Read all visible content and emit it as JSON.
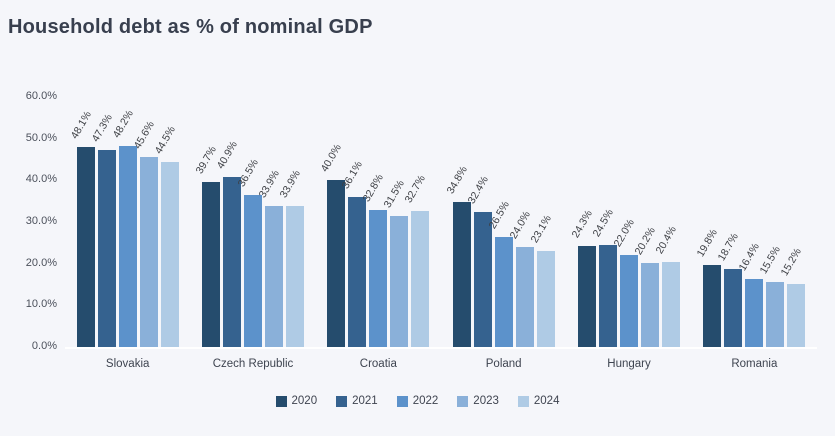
{
  "chart_data": {
    "type": "bar",
    "title": "Household debt as % of nominal GDP",
    "categories": [
      "Slovakia",
      "Czech Republic",
      "Croatia",
      "Poland",
      "Hungary",
      "Romania"
    ],
    "series": [
      {
        "name": "2020",
        "color": "#254C6D",
        "values": [
          48.1,
          39.7,
          40.0,
          34.8,
          24.3,
          19.8
        ]
      },
      {
        "name": "2021",
        "color": "#35628F",
        "values": [
          47.3,
          40.9,
          36.1,
          32.4,
          24.5,
          18.7
        ]
      },
      {
        "name": "2022",
        "color": "#5C92CB",
        "values": [
          48.2,
          36.5,
          32.8,
          26.5,
          22.0,
          16.4
        ]
      },
      {
        "name": "2023",
        "color": "#8AB0D9",
        "values": [
          45.6,
          33.9,
          31.5,
          24.0,
          20.2,
          15.5
        ]
      },
      {
        "name": "2024",
        "color": "#AFCBE5",
        "values": [
          44.5,
          33.9,
          32.7,
          23.1,
          20.4,
          15.2
        ]
      }
    ],
    "ylim": [
      0,
      60
    ],
    "yticks": [
      "0.0%",
      "10.0%",
      "20.0%",
      "30.0%",
      "40.0%",
      "50.0%",
      "60.0%"
    ],
    "value_label_suffix": "%",
    "grid": false,
    "legend_position": "bottom",
    "background_color": "#F5F6FA"
  }
}
